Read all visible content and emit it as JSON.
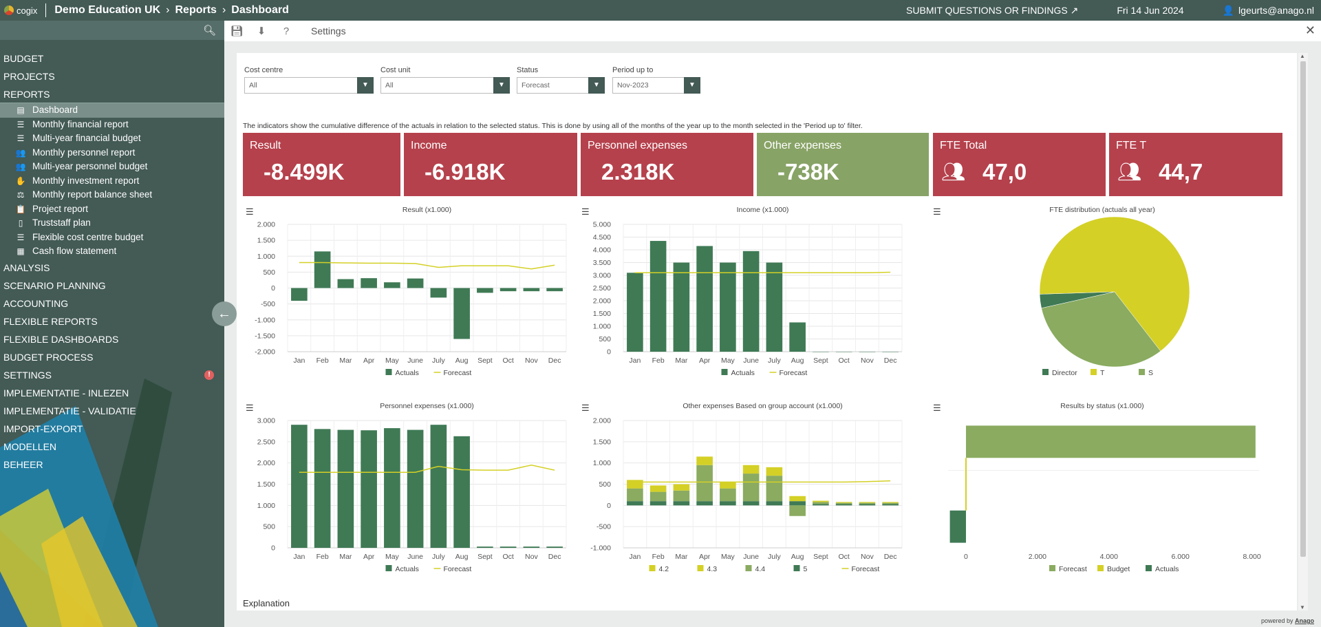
{
  "app": {
    "logo_text": "cogix",
    "breadcrumbs": [
      "Demo Education UK",
      "Reports",
      "Dashboard"
    ],
    "submit_label": "SUBMIT QUESTIONS OR FINDINGS",
    "date": "Fri 14 Jun 2024",
    "user": "lgeurts@anago.nl"
  },
  "toolbar": {
    "settings_label": "Settings"
  },
  "sidebar": {
    "sections_top": [
      "BUDGET",
      "PROJECTS",
      "REPORTS"
    ],
    "reports_items": [
      {
        "label": "Dashboard",
        "icon": "chart-icon",
        "glyph": "▤"
      },
      {
        "label": "Monthly financial report",
        "icon": "coins-icon",
        "glyph": "☰"
      },
      {
        "label": "Multi-year financial budget",
        "icon": "coins-icon",
        "glyph": "☰"
      },
      {
        "label": "Monthly personnel report",
        "icon": "users-icon",
        "glyph": "👥"
      },
      {
        "label": "Multi-year personnel budget",
        "icon": "users-icon",
        "glyph": "👥"
      },
      {
        "label": "Monthly investment report",
        "icon": "handshake-icon",
        "glyph": "✋"
      },
      {
        "label": "Monthly report balance sheet",
        "icon": "scale-icon",
        "glyph": "⚖"
      },
      {
        "label": "Project report",
        "icon": "clipboard-icon",
        "glyph": "📋"
      },
      {
        "label": "Truststaff plan",
        "icon": "file-icon",
        "glyph": "▯"
      },
      {
        "label": "Flexible cost centre budget",
        "icon": "coins-icon",
        "glyph": "☰"
      },
      {
        "label": "Cash flow statement",
        "icon": "cash-icon",
        "glyph": "▦"
      }
    ],
    "sections_bottom": [
      "ANALYSIS",
      "SCENARIO PLANNING",
      "ACCOUNTING",
      "FLEXIBLE REPORTS",
      "FLEXIBLE DASHBOARDS",
      "BUDGET PROCESS",
      "SETTINGS",
      "IMPLEMENTATIE - INLEZEN",
      "IMPLEMENTATIE - VALIDATIE",
      "IMPORT-EXPORT",
      "MODELLEN",
      "BEHEER"
    ],
    "settings_badge": "!"
  },
  "filters": [
    {
      "label": "Cost centre",
      "value": "All"
    },
    {
      "label": "Cost unit",
      "value": "All"
    },
    {
      "label": "Status",
      "value": "Forecast"
    },
    {
      "label": "Period up to",
      "value": "Nov-2023"
    }
  ],
  "note": "The indicators show the cumulative difference of the actuals in relation to the selected status. This is done by using all of the months of the year up to the month selected in the 'Period up to' filter.",
  "kpis": [
    {
      "title": "Result",
      "value": "-8.499K",
      "color": "#b5414c"
    },
    {
      "title": "Income",
      "value": "-6.918K",
      "color": "#b5414c"
    },
    {
      "title": "Personnel expenses",
      "value": "2.318K",
      "color": "#b5414c"
    },
    {
      "title": "Other expenses",
      "value": "-738K",
      "color": "#88a366"
    },
    {
      "title": "FTE Total",
      "value": "47,0",
      "color": "#b5414c",
      "icon": "users-icon"
    },
    {
      "title": "FTE T",
      "value": "44,7",
      "color": "#b5414c",
      "icon": "users-icon"
    }
  ],
  "colors": {
    "actuals": "#3f7a55",
    "forecast": "#d4d026",
    "light_green": "#8aab60",
    "budget": "#d4d026",
    "s_green": "#8aab60"
  },
  "chart_data": [
    {
      "type": "bar",
      "title": "Result (x1.000)",
      "categories": [
        "Jan",
        "Feb",
        "Mar",
        "Apr",
        "May",
        "June",
        "July",
        "Aug",
        "Sept",
        "Oct",
        "Nov",
        "Dec"
      ],
      "series": [
        {
          "name": "Actuals",
          "kind": "bar",
          "values": [
            -400,
            1150,
            280,
            310,
            180,
            300,
            -300,
            -1600,
            -150,
            -100,
            -100,
            -100
          ]
        },
        {
          "name": "Forecast",
          "kind": "line",
          "values": [
            800,
            800,
            790,
            780,
            780,
            770,
            650,
            700,
            700,
            700,
            600,
            720
          ]
        }
      ],
      "yticks": [
        2000,
        1500,
        1000,
        500,
        0,
        -500,
        -1000,
        -1500,
        -2000
      ],
      "ytick_labels": [
        "2.000",
        "1.500",
        "1.000",
        "500",
        "0",
        "-500",
        "-1.000",
        "-1.500",
        "-2.000"
      ],
      "ylim": [
        -2000,
        2000
      ],
      "legend": [
        "Actuals",
        "Forecast"
      ]
    },
    {
      "type": "bar",
      "title": "Income (x1.000)",
      "categories": [
        "Jan",
        "Feb",
        "Mar",
        "Apr",
        "May",
        "June",
        "July",
        "Aug",
        "Sept",
        "Oct",
        "Nov",
        "Dec"
      ],
      "series": [
        {
          "name": "Actuals",
          "kind": "bar",
          "values": [
            3100,
            4350,
            3500,
            4150,
            3500,
            3950,
            3500,
            1150,
            0,
            0,
            0,
            0
          ]
        },
        {
          "name": "Forecast",
          "kind": "line",
          "values": [
            3100,
            3100,
            3100,
            3100,
            3100,
            3100,
            3100,
            3100,
            3100,
            3100,
            3100,
            3120
          ]
        }
      ],
      "yticks": [
        5000,
        4500,
        4000,
        3500,
        3000,
        2500,
        2000,
        1500,
        1000,
        500,
        0
      ],
      "ytick_labels": [
        "5.000",
        "4.500",
        "4.000",
        "3.500",
        "3.000",
        "2.500",
        "2.000",
        "1.500",
        "1.000",
        "500",
        "0"
      ],
      "ylim": [
        0,
        5000
      ],
      "legend": [
        "Actuals",
        "Forecast"
      ]
    },
    {
      "type": "pie",
      "title": "FTE distribution (actuals all year)",
      "slices": [
        {
          "name": "Director",
          "value": 3,
          "color": "#3f7a55"
        },
        {
          "name": "T",
          "value": 65,
          "color": "#d4d026"
        },
        {
          "name": "S",
          "value": 32,
          "color": "#8aab60"
        }
      ],
      "legend": [
        "Director",
        "T",
        "S"
      ]
    },
    {
      "type": "bar",
      "title": "Personnel expenses (x1.000)",
      "categories": [
        "Jan",
        "Feb",
        "Mar",
        "Apr",
        "May",
        "June",
        "July",
        "Aug",
        "Sept",
        "Oct",
        "Nov",
        "Dec"
      ],
      "series": [
        {
          "name": "Actuals",
          "kind": "bar",
          "values": [
            2900,
            2800,
            2780,
            2770,
            2820,
            2780,
            2900,
            2630,
            30,
            30,
            30,
            30
          ]
        },
        {
          "name": "Forecast",
          "kind": "line",
          "values": [
            1780,
            1780,
            1780,
            1780,
            1780,
            1780,
            1920,
            1840,
            1830,
            1830,
            1950,
            1830
          ]
        }
      ],
      "yticks": [
        3000,
        2500,
        2000,
        1500,
        1000,
        500,
        0
      ],
      "ytick_labels": [
        "3.000",
        "2.500",
        "2.000",
        "1.500",
        "1.000",
        "500",
        "0"
      ],
      "ylim": [
        0,
        3000
      ],
      "legend": [
        "Actuals",
        "Forecast"
      ]
    },
    {
      "type": "bar",
      "title": "Other expenses Based on group account (x1.000)",
      "categories": [
        "Jan",
        "Feb",
        "Mar",
        "Apr",
        "May",
        "June",
        "July",
        "Aug",
        "Sept",
        "Oct",
        "Nov",
        "Dec"
      ],
      "series": [
        {
          "name": "4.2",
          "kind": "stack",
          "color": "#d4d026",
          "values": [
            200,
            150,
            150,
            200,
            150,
            200,
            200,
            120,
            30,
            20,
            20,
            20
          ]
        },
        {
          "name": "4.3",
          "kind": "stack",
          "color": "#d4d026",
          "values": [
            0,
            0,
            0,
            0,
            0,
            0,
            0,
            0,
            0,
            0,
            0,
            0
          ]
        },
        {
          "name": "4.4",
          "kind": "stack",
          "color": "#8aab60",
          "values": [
            300,
            220,
            250,
            850,
            300,
            650,
            600,
            -250,
            50,
            30,
            30,
            30
          ]
        },
        {
          "name": "5",
          "kind": "stack",
          "color": "#3f7a55",
          "values": [
            100,
            100,
            100,
            100,
            100,
            100,
            100,
            100,
            30,
            30,
            30,
            30
          ]
        },
        {
          "name": "Forecast",
          "kind": "line",
          "values": [
            550,
            550,
            550,
            550,
            550,
            550,
            550,
            550,
            550,
            550,
            560,
            580
          ]
        }
      ],
      "yticks": [
        2000,
        1500,
        1000,
        500,
        0,
        -500,
        -1000
      ],
      "ytick_labels": [
        "2.000",
        "1.500",
        "1.000",
        "500",
        "0",
        "-500",
        "-1.000"
      ],
      "ylim": [
        -1000,
        2000
      ],
      "legend": [
        "4.2",
        "4.3",
        "4.4",
        "5",
        "Forecast"
      ]
    },
    {
      "type": "bar",
      "title": "Results by status (x1.000)",
      "orientation": "horizontal",
      "series": [
        {
          "name": "Forecast",
          "color": "#8aab60",
          "value": 8100
        },
        {
          "name": "Budget",
          "color": "#d4d026",
          "value": 0
        },
        {
          "name": "Actuals",
          "color": "#3f7a55",
          "value": -450
        }
      ],
      "xticks": [
        0,
        2000,
        4000,
        6000,
        8000
      ],
      "xtick_labels": [
        "0",
        "2.000",
        "4.000",
        "6.000",
        "8.000"
      ],
      "xlim": [
        -500,
        8200
      ],
      "legend": [
        "Forecast",
        "Budget",
        "Actuals"
      ]
    }
  ],
  "explanation_label": "Explanation",
  "powered_by": {
    "prefix": "powered by",
    "brand": "Anago"
  }
}
